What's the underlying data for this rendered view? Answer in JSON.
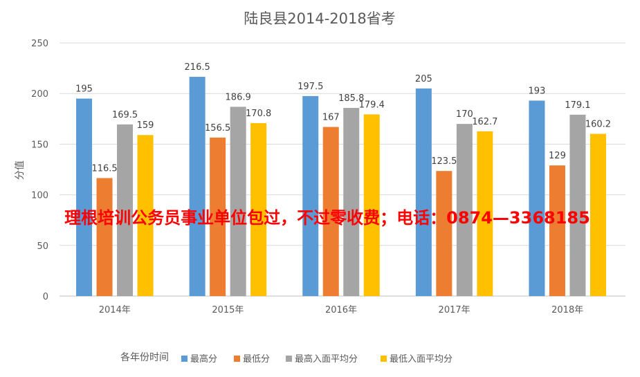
{
  "chart_data": {
    "type": "bar",
    "title": "陆良县2014-2018省考",
    "ylabel": "分值",
    "xlabel": "各年份时间",
    "ylim": [
      0,
      250
    ],
    "yticks": [
      0,
      50,
      100,
      150,
      200,
      250
    ],
    "grid": true,
    "legend_position": "bottom",
    "categories": [
      "2014年",
      "2015年",
      "2016年",
      "2017年",
      "2018年"
    ],
    "series": [
      {
        "name": "最高分",
        "color": "#5b9bd5",
        "values": [
          195,
          216.5,
          197.5,
          205,
          193
        ],
        "labels": [
          "195",
          "216.5",
          "197.5",
          "205",
          "193"
        ]
      },
      {
        "name": "最低分",
        "color": "#ed7d31",
        "values": [
          116.5,
          156.5,
          167,
          123.5,
          129
        ],
        "labels": [
          "116.5",
          "156.5",
          "167",
          "123.5",
          "129"
        ]
      },
      {
        "name": "最高入面平均分",
        "color": "#a5a5a5",
        "values": [
          169.5,
          186.9,
          185.8,
          170,
          179.1
        ],
        "labels": [
          "169.5",
          "186.9",
          "185.8",
          "170",
          "179.1"
        ]
      },
      {
        "name": "最低入面平均分",
        "color": "#ffc000",
        "values": [
          159,
          170.8,
          179.4,
          162.7,
          160.2
        ],
        "labels": [
          "159",
          "170.8",
          "179.4",
          "162.7",
          "160.2"
        ]
      }
    ]
  },
  "banner_text": "理根培训公务员事业单位包过，不过零收费；电话：0874—3368185"
}
